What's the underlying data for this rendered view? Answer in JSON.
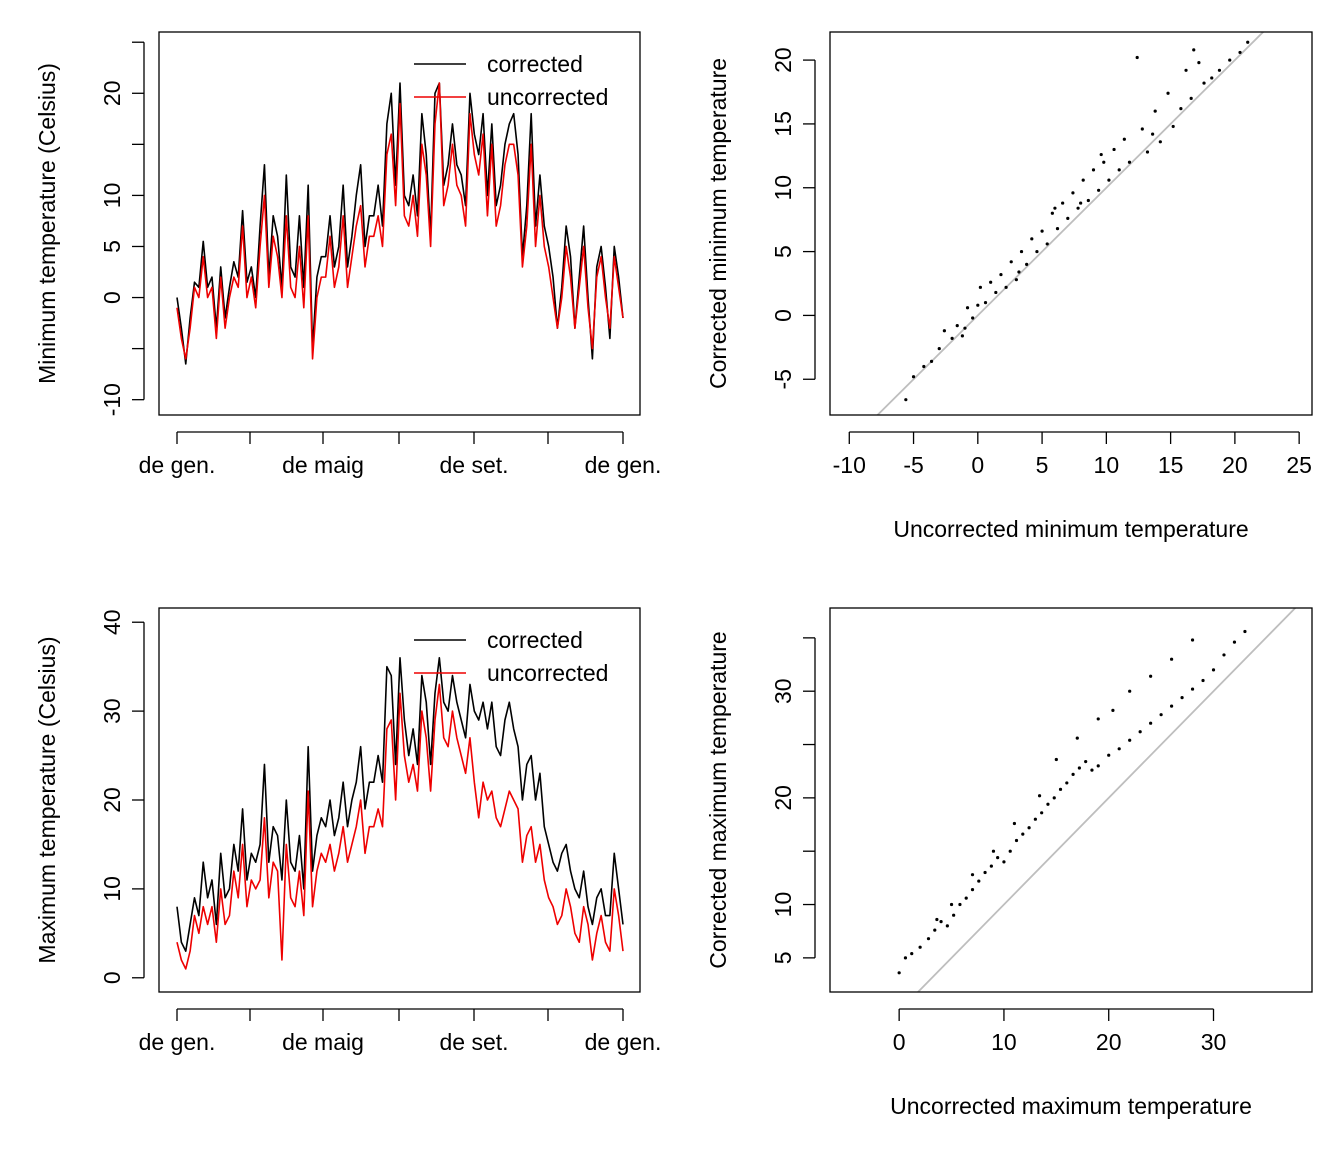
{
  "chart_data": [
    {
      "type": "line",
      "xlabel": "",
      "ylabel": "Minimum temperature (Celsius)",
      "x_tick_labels": [
        "de gen.",
        "de maig",
        "de set.",
        "de gen."
      ],
      "y_ticks": [
        -10,
        -5,
        0,
        5,
        10,
        15,
        20,
        25
      ],
      "y_tick_labels": [
        "-10",
        "",
        "0",
        "5",
        "10",
        "",
        "20",
        ""
      ],
      "ylim": [
        -11.5,
        26
      ],
      "legend_position": "top-right",
      "series": [
        {
          "name": "corrected",
          "color": "#000000",
          "values": [
            0,
            -3,
            -6.5,
            -2,
            1.5,
            1,
            5.5,
            1,
            2,
            -3,
            3,
            -2,
            1,
            3.5,
            2,
            8.5,
            1.5,
            3,
            0,
            7,
            13,
            2,
            8,
            6,
            1,
            12,
            3,
            2,
            8,
            1,
            11,
            -5,
            2,
            4,
            4,
            8,
            3,
            5,
            11,
            3,
            6,
            10,
            13,
            5,
            8,
            8,
            11,
            7,
            17,
            20,
            11,
            21,
            10,
            9,
            12,
            8,
            18,
            14,
            6,
            20,
            21,
            11,
            13,
            17,
            13,
            12,
            9,
            20,
            16,
            14,
            18,
            10,
            17,
            9,
            11,
            15,
            17,
            18,
            14,
            4,
            9,
            18,
            7,
            12,
            7,
            5,
            2,
            -3,
            1,
            7,
            4,
            -3,
            2,
            7,
            0,
            -6,
            3,
            5,
            1,
            -4,
            5,
            2,
            -2
          ]
        },
        {
          "name": "uncorrected",
          "color": "#ee0000",
          "values": [
            -1,
            -4,
            -6,
            -3,
            1,
            0,
            4,
            0,
            1,
            -4,
            2,
            -3,
            0,
            2,
            1,
            7,
            0,
            2,
            -1,
            5,
            10,
            1,
            6,
            4,
            0,
            8,
            1,
            0,
            5,
            -1,
            8,
            -6,
            0,
            2,
            2,
            6,
            1,
            3,
            8,
            1,
            4,
            7,
            9,
            3,
            6,
            6,
            8,
            5,
            14,
            16,
            9,
            19,
            8,
            7,
            10,
            6,
            15,
            12,
            5,
            17,
            21,
            9,
            11,
            15,
            11,
            10,
            7,
            18,
            14,
            12,
            16,
            8,
            15,
            7,
            9,
            13,
            15,
            15,
            12,
            3,
            7,
            15,
            5,
            10,
            5,
            3,
            0,
            -3,
            0,
            5,
            2,
            -3,
            1,
            5,
            -1,
            -5,
            2,
            4,
            0,
            -3,
            4,
            1,
            -2
          ]
        }
      ]
    },
    {
      "type": "scatter",
      "xlabel": "Uncorrected minimum temperature",
      "ylabel": "Corrected minimum temperature",
      "x_ticks": [
        -10,
        -5,
        0,
        5,
        10,
        15,
        20,
        25
      ],
      "y_ticks": [
        -5,
        0,
        5,
        10,
        15,
        20
      ],
      "xlim": [
        -11.5,
        26
      ],
      "ylim": [
        -7.8,
        22.2
      ],
      "identity_line": true,
      "line_color": "#bebebe",
      "points": [
        [
          -5.6,
          -6.6
        ],
        [
          -5,
          -4.8
        ],
        [
          -4.2,
          -4
        ],
        [
          -3.6,
          -3.6
        ],
        [
          -3,
          -2.6
        ],
        [
          -2.6,
          -1.2
        ],
        [
          -2,
          -1.8
        ],
        [
          -1.6,
          -0.8
        ],
        [
          -1.2,
          -1.6
        ],
        [
          -0.8,
          0.6
        ],
        [
          -0.4,
          -0.2
        ],
        [
          0,
          0.8
        ],
        [
          0.2,
          2.2
        ],
        [
          0.6,
          1
        ],
        [
          1,
          2.6
        ],
        [
          1.4,
          1.8
        ],
        [
          1.8,
          3.2
        ],
        [
          2.2,
          2.2
        ],
        [
          2.6,
          4.2
        ],
        [
          3,
          2.8
        ],
        [
          3.4,
          5
        ],
        [
          3.8,
          4
        ],
        [
          4.2,
          6
        ],
        [
          4.6,
          5
        ],
        [
          5,
          6.6
        ],
        [
          5.4,
          5.6
        ],
        [
          5.8,
          8
        ],
        [
          6.2,
          6.8
        ],
        [
          6.6,
          8.8
        ],
        [
          7,
          7.6
        ],
        [
          7.4,
          9.6
        ],
        [
          7.8,
          8.4
        ],
        [
          8.2,
          10.6
        ],
        [
          8.6,
          9
        ],
        [
          9,
          11.4
        ],
        [
          9.4,
          9.8
        ],
        [
          9.8,
          12
        ],
        [
          10.2,
          10.6
        ],
        [
          10.6,
          13
        ],
        [
          11,
          11.4
        ],
        [
          11.4,
          13.8
        ],
        [
          11.8,
          12
        ],
        [
          12.4,
          20.2
        ],
        [
          12.8,
          14.6
        ],
        [
          13.2,
          12.8
        ],
        [
          13.8,
          16
        ],
        [
          14.2,
          13.6
        ],
        [
          14.8,
          17.4
        ],
        [
          15.2,
          14.8
        ],
        [
          15.8,
          16.2
        ],
        [
          16.2,
          19.2
        ],
        [
          16.6,
          17
        ],
        [
          17.2,
          19.8
        ],
        [
          17.6,
          18.2
        ],
        [
          18.2,
          18.6
        ],
        [
          18.8,
          19.2
        ],
        [
          19.6,
          20
        ],
        [
          20.4,
          20.6
        ],
        [
          21,
          21.4
        ],
        [
          16.8,
          20.8
        ],
        [
          13.6,
          14.2
        ],
        [
          8,
          8.8
        ],
        [
          3.2,
          3.4
        ],
        [
          -1,
          -1
        ],
        [
          6,
          8.4
        ],
        [
          9.6,
          12.6
        ]
      ]
    },
    {
      "type": "line",
      "xlabel": "",
      "ylabel": "Maximum temperature (Celsius)",
      "x_tick_labels": [
        "de gen.",
        "de maig",
        "de set.",
        "de gen."
      ],
      "y_ticks": [
        0,
        10,
        20,
        30,
        40
      ],
      "ylim": [
        -1.6,
        41.6
      ],
      "legend_position": "top-right",
      "series": [
        {
          "name": "corrected",
          "color": "#000000",
          "values": [
            8,
            4,
            3,
            6,
            9,
            7,
            13,
            9,
            11,
            6,
            14,
            9,
            10,
            15,
            12,
            19,
            11,
            14,
            13,
            15,
            24,
            13,
            17,
            16,
            11,
            20,
            13,
            12,
            16,
            10,
            26,
            12,
            16,
            18,
            17,
            20,
            16,
            18,
            22,
            17,
            20,
            22,
            26,
            19,
            22,
            22,
            25,
            22,
            35,
            34,
            24,
            36,
            29,
            25,
            28,
            24,
            34,
            31,
            24,
            32,
            36,
            31,
            30,
            34,
            31,
            29,
            27,
            33,
            30,
            29,
            31,
            28,
            31,
            26,
            25,
            29,
            31,
            28,
            26,
            20,
            24,
            25,
            20,
            23,
            17,
            15,
            13,
            12,
            14,
            15,
            12,
            10,
            9,
            12,
            8,
            6,
            9,
            10,
            7,
            7,
            14,
            10,
            6
          ]
        },
        {
          "name": "uncorrected",
          "color": "#ee0000",
          "values": [
            4,
            2,
            1,
            3,
            7,
            5,
            8,
            6,
            8,
            4,
            10,
            6,
            7,
            12,
            9,
            15,
            8,
            11,
            10,
            11,
            18,
            9,
            13,
            12,
            2,
            15,
            9,
            8,
            12,
            7,
            21,
            8,
            12,
            14,
            13,
            15,
            12,
            14,
            17,
            13,
            15,
            17,
            20,
            14,
            17,
            17,
            19,
            17,
            28,
            29,
            20,
            32,
            25,
            22,
            24,
            21,
            30,
            27,
            21,
            29,
            33,
            27,
            26,
            30,
            27,
            25,
            23,
            27,
            22,
            18,
            22,
            20,
            21,
            18,
            17,
            19,
            21,
            20,
            19,
            13,
            16,
            17,
            13,
            15,
            11,
            9,
            8,
            6,
            7,
            10,
            8,
            5,
            4,
            8,
            6,
            2,
            5,
            7,
            4,
            3,
            10,
            7,
            3
          ]
        }
      ]
    },
    {
      "type": "scatter",
      "xlabel": "Uncorrected maximum temperature",
      "ylabel": "Corrected maximum temperature",
      "x_ticks": [
        0,
        10,
        20,
        30
      ],
      "y_ticks": [
        5,
        10,
        15,
        20,
        25,
        30,
        35
      ],
      "y_tick_labels": [
        "5",
        "10",
        "",
        "20",
        "",
        "30",
        ""
      ],
      "xlim": [
        -6.6,
        39.4
      ],
      "ylim": [
        1.8,
        37.8
      ],
      "identity_line": true,
      "line_color": "#bebebe",
      "points": [
        [
          0,
          3.6
        ],
        [
          0.6,
          5
        ],
        [
          1.2,
          5.4
        ],
        [
          2,
          6
        ],
        [
          2.8,
          6.8
        ],
        [
          3.4,
          7.6
        ],
        [
          4,
          8.4
        ],
        [
          4.6,
          8
        ],
        [
          5.2,
          9
        ],
        [
          5.8,
          10
        ],
        [
          6.4,
          10.6
        ],
        [
          7,
          11.4
        ],
        [
          7.6,
          12.2
        ],
        [
          8.2,
          13
        ],
        [
          8.8,
          13.6
        ],
        [
          9.4,
          14.4
        ],
        [
          10,
          14
        ],
        [
          10.6,
          15
        ],
        [
          11.2,
          16
        ],
        [
          11.8,
          16.6
        ],
        [
          12.4,
          17.2
        ],
        [
          13,
          18
        ],
        [
          13.6,
          18.6
        ],
        [
          14.2,
          19.4
        ],
        [
          14.8,
          20
        ],
        [
          15.4,
          20.8
        ],
        [
          16,
          21.4
        ],
        [
          16.6,
          22.2
        ],
        [
          17.2,
          22.8
        ],
        [
          17.8,
          23.4
        ],
        [
          18.4,
          22.6
        ],
        [
          19,
          23
        ],
        [
          20,
          24
        ],
        [
          21,
          24.6
        ],
        [
          22,
          25.4
        ],
        [
          23,
          26.2
        ],
        [
          24,
          27
        ],
        [
          25,
          27.8
        ],
        [
          26,
          28.6
        ],
        [
          27,
          29.4
        ],
        [
          28,
          30.2
        ],
        [
          29,
          31
        ],
        [
          30,
          32
        ],
        [
          31,
          33.4
        ],
        [
          32,
          34.6
        ],
        [
          33,
          35.6
        ],
        [
          17,
          25.6
        ],
        [
          19,
          27.4
        ],
        [
          20.4,
          28.2
        ],
        [
          22,
          30
        ],
        [
          24,
          31.4
        ],
        [
          26,
          33
        ],
        [
          28,
          34.8
        ],
        [
          15,
          23.6
        ],
        [
          13.4,
          20.2
        ],
        [
          11,
          17.6
        ],
        [
          9,
          15
        ],
        [
          7,
          12.8
        ],
        [
          5,
          10
        ],
        [
          3.6,
          8.6
        ]
      ]
    }
  ]
}
